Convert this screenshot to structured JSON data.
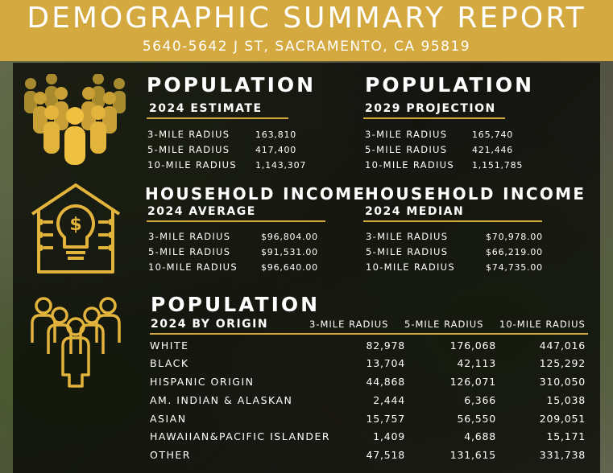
{
  "header": {
    "title": "DEMOGRAPHIC SUMMARY REPORT",
    "address": "5640-5642 J ST, SACRAMENTO, CA 95819"
  },
  "pop_estimate": {
    "heading": "POPULATION",
    "subheading": "2024 ESTIMATE",
    "rows": [
      {
        "label": "3-MILE RADIUS",
        "value": "163,810"
      },
      {
        "label": "5-MILE RADIUS",
        "value": "417,400"
      },
      {
        "label": "10-MILE RADIUS",
        "value": "1,143,307"
      }
    ]
  },
  "pop_projection": {
    "heading": "POPULATION",
    "subheading": "2029 PROJECTION",
    "rows": [
      {
        "label": "3-MILE RADIUS",
        "value": "165,740"
      },
      {
        "label": "5-MILE RADIUS",
        "value": "421,446"
      },
      {
        "label": "10-MILE RADIUS",
        "value": "1,151,785"
      }
    ]
  },
  "income_average": {
    "heading": "HOUSEHOLD INCOME",
    "subheading": "2024 AVERAGE",
    "rows": [
      {
        "label": "3-MILE RADIUS",
        "value": "$96,804.00"
      },
      {
        "label": "5-MILE RADIUS",
        "value": "$91,531.00"
      },
      {
        "label": "10-MILE RADIUS",
        "value": "$96,640.00"
      }
    ]
  },
  "income_median": {
    "heading": "HOUSEHOLD INCOME",
    "subheading": "2024 MEDIAN",
    "rows": [
      {
        "label": "3-MILE RADIUS",
        "value": "$70,978.00"
      },
      {
        "label": "5-MILE RADIUS",
        "value": "$66,219.00"
      },
      {
        "label": "10-MILE RADIUS",
        "value": "$74,735.00"
      }
    ]
  },
  "origin": {
    "heading": "POPULATION",
    "subheading": "2024 BY ORIGIN",
    "columns": [
      "3-MILE RADIUS",
      "5-MILE RADIUS",
      "10-MILE RADIUS"
    ],
    "rows": [
      {
        "label": "WHITE",
        "values": [
          "82,978",
          "176,068",
          "447,016"
        ]
      },
      {
        "label": "BLACK",
        "values": [
          "13,704",
          "42,113",
          "125,292"
        ]
      },
      {
        "label": "HISPANIC ORIGIN",
        "values": [
          "44,868",
          "126,071",
          "310,050"
        ]
      },
      {
        "label": "AM. INDIAN & ALASKAN",
        "values": [
          "2,444",
          "6,366",
          "15,038"
        ]
      },
      {
        "label": "ASIAN",
        "values": [
          "15,757",
          "56,550",
          "209,051"
        ]
      },
      {
        "label": "HAWAIIAN&PACIFIC ISLANDER",
        "values": [
          "1,409",
          "4,688",
          "15,171"
        ]
      },
      {
        "label": "OTHER",
        "values": [
          "47,518",
          "131,615",
          "331,738"
        ]
      }
    ]
  },
  "icons": {
    "population": "crowd-icon",
    "income": "house-lightbulb-dollar-icon",
    "origin": "group-people-icon"
  },
  "colors": {
    "accent": "#d4a93f",
    "text": "#ffffff",
    "panel": "rgba(0,0,0,0.72)"
  }
}
